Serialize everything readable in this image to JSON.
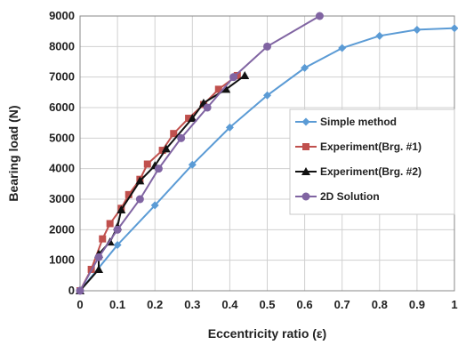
{
  "chart_data": {
    "type": "scatter",
    "xlabel": "Eccentricity ratio (ε)",
    "ylabel": "Bearing load (N)",
    "xlim": [
      0,
      1
    ],
    "ylim": [
      0,
      9000
    ],
    "xticks": [
      0,
      0.1,
      0.2,
      0.3,
      0.4,
      0.5,
      0.6,
      0.7,
      0.8,
      0.9,
      1
    ],
    "yticks": [
      0,
      1000,
      2000,
      3000,
      4000,
      5000,
      6000,
      7000,
      8000,
      9000
    ],
    "grid": true,
    "legend": "right",
    "series": [
      {
        "name": "Simple method",
        "color": "#5b9bd5",
        "marker": "diamond",
        "line": true,
        "points": [
          [
            0,
            0
          ],
          [
            0.1,
            1500
          ],
          [
            0.2,
            2800
          ],
          [
            0.3,
            4130
          ],
          [
            0.4,
            5350
          ],
          [
            0.5,
            6400
          ],
          [
            0.6,
            7300
          ],
          [
            0.7,
            7950
          ],
          [
            0.8,
            8350
          ],
          [
            0.9,
            8550
          ],
          [
            1.0,
            8600
          ]
        ]
      },
      {
        "name": "Experiment(Brg. #1)",
        "color": "#c0504d",
        "marker": "square",
        "line": true,
        "points": [
          [
            0,
            0
          ],
          [
            0.03,
            700
          ],
          [
            0.06,
            1700
          ],
          [
            0.08,
            2200
          ],
          [
            0.11,
            2700
          ],
          [
            0.13,
            3150
          ],
          [
            0.16,
            3650
          ],
          [
            0.18,
            4150
          ],
          [
            0.22,
            4600
          ],
          [
            0.25,
            5150
          ],
          [
            0.29,
            5650
          ],
          [
            0.33,
            6100
          ],
          [
            0.37,
            6600
          ],
          [
            0.42,
            7050
          ]
        ]
      },
      {
        "name": "Experiment(Brg. #2)",
        "color": "#111111",
        "marker": "triangle",
        "line": true,
        "points": [
          [
            0,
            0
          ],
          [
            0.05,
            700
          ],
          [
            0.05,
            1200
          ],
          [
            0.08,
            1600
          ],
          [
            0.1,
            2100
          ],
          [
            0.11,
            2650
          ],
          [
            0.16,
            3600
          ],
          [
            0.2,
            4100
          ],
          [
            0.23,
            4650
          ],
          [
            0.3,
            5650
          ],
          [
            0.33,
            6150
          ],
          [
            0.39,
            6600
          ],
          [
            0.44,
            7050
          ]
        ]
      },
      {
        "name": "2D Solution",
        "color": "#8064a2",
        "marker": "circle",
        "line": true,
        "points": [
          [
            0,
            0
          ],
          [
            0.05,
            1100
          ],
          [
            0.1,
            2000
          ],
          [
            0.16,
            3000
          ],
          [
            0.21,
            4000
          ],
          [
            0.27,
            5000
          ],
          [
            0.34,
            6000
          ],
          [
            0.41,
            7000
          ],
          [
            0.5,
            8000
          ],
          [
            0.64,
            9000
          ]
        ]
      }
    ]
  }
}
